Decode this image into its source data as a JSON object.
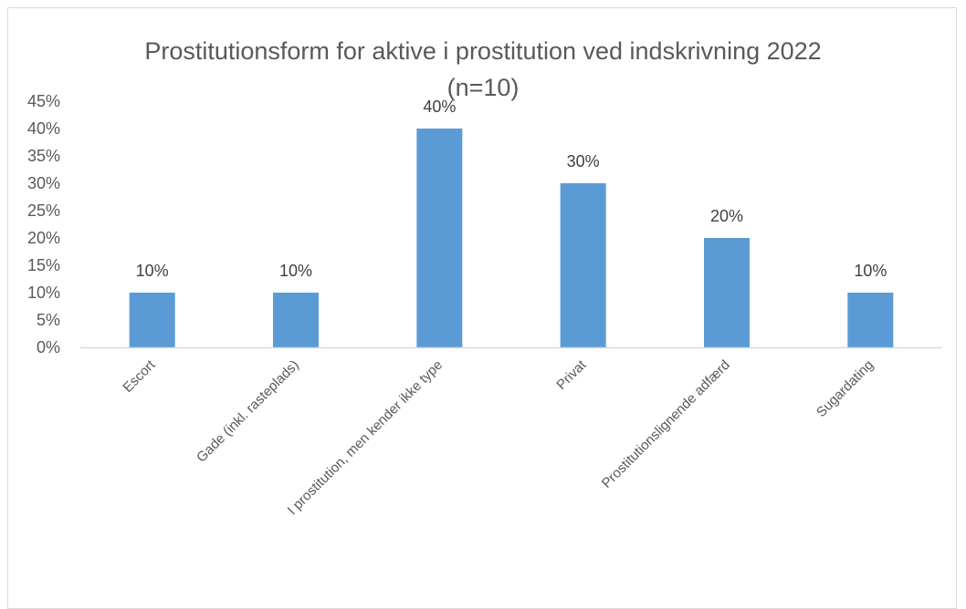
{
  "chart_data": {
    "type": "bar",
    "title_line1": "Prostitutionsform for aktive i prostitution ved indskrivning 2022",
    "title_line2": "(n=10)",
    "categories": [
      "Escort",
      "Gade (inkl. rasteplads)",
      "I prostitution, men kender ikke type",
      "Privat",
      "Prostitutionslignende adfærd",
      "Sugardating"
    ],
    "values": [
      10,
      10,
      40,
      30,
      20,
      10
    ],
    "data_labels": [
      "10%",
      "10%",
      "40%",
      "30%",
      "20%",
      "10%"
    ],
    "y_ticks": [
      "0%",
      "5%",
      "10%",
      "15%",
      "20%",
      "25%",
      "30%",
      "35%",
      "40%",
      "45%"
    ],
    "ylim": [
      0,
      45
    ],
    "grid": false,
    "legend": "none",
    "bar_color": "#5B9BD5",
    "axis_color": "#d9d9d9"
  }
}
